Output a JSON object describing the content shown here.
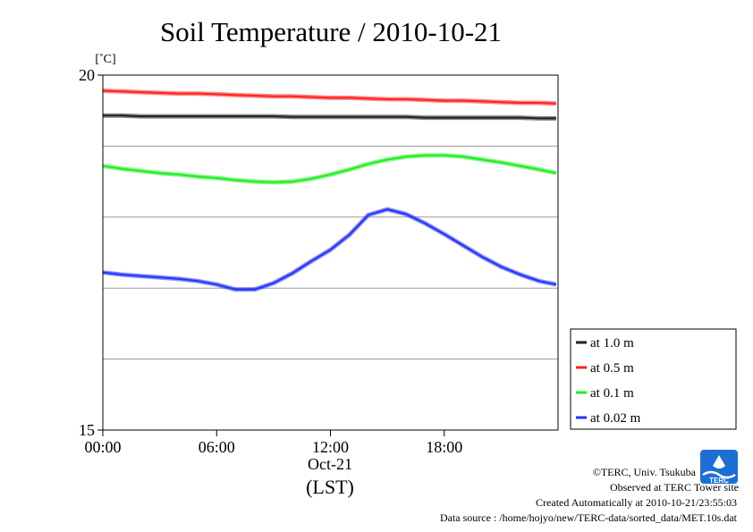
{
  "chart_data": {
    "type": "line",
    "title": "Soil Temperature / 2010-10-21",
    "unit_label": "[˚C]",
    "ylim": [
      15,
      20
    ],
    "y_ticks": [
      {
        "value": 20,
        "label": "20"
      },
      {
        "value": 15,
        "label": "15"
      }
    ],
    "y_gridlines": [
      16,
      17,
      18,
      19
    ],
    "xlim": [
      0,
      24
    ],
    "x_ticks": [
      {
        "value": 0,
        "label": "00:00"
      },
      {
        "value": 6,
        "label": "06:00"
      },
      {
        "value": 12,
        "label": "12:00"
      },
      {
        "value": 18,
        "label": "18:00"
      }
    ],
    "date_label": "Oct-21",
    "xlabel": "(LST)",
    "legend_position": "right",
    "x": [
      0,
      1,
      2,
      3,
      4,
      5,
      6,
      7,
      8,
      9,
      10,
      11,
      12,
      13,
      14,
      15,
      16,
      17,
      18,
      19,
      20,
      21,
      22,
      23,
      23.9
    ],
    "series": [
      {
        "name": "at 1.0 m",
        "color": "#222222",
        "values": [
          19.43,
          19.43,
          19.42,
          19.42,
          19.42,
          19.42,
          19.42,
          19.42,
          19.42,
          19.42,
          19.41,
          19.41,
          19.41,
          19.41,
          19.41,
          19.41,
          19.41,
          19.4,
          19.4,
          19.4,
          19.4,
          19.4,
          19.4,
          19.39,
          19.39
        ]
      },
      {
        "name": "at 0.5 m",
        "color": "#ff2222",
        "values": [
          19.78,
          19.77,
          19.76,
          19.75,
          19.74,
          19.74,
          19.73,
          19.72,
          19.71,
          19.7,
          19.7,
          19.69,
          19.68,
          19.68,
          19.67,
          19.66,
          19.66,
          19.65,
          19.64,
          19.64,
          19.63,
          19.62,
          19.61,
          19.61,
          19.6
        ]
      },
      {
        "name": "at 0.1 m",
        "color": "#22ee22",
        "values": [
          18.72,
          18.68,
          18.65,
          18.62,
          18.6,
          18.57,
          18.55,
          18.52,
          18.5,
          18.49,
          18.5,
          18.54,
          18.6,
          18.67,
          18.75,
          18.81,
          18.85,
          18.87,
          18.87,
          18.85,
          18.81,
          18.77,
          18.72,
          18.67,
          18.62
        ]
      },
      {
        "name": "at 0.02 m",
        "color": "#2233ff",
        "values": [
          17.22,
          17.19,
          17.17,
          17.15,
          17.13,
          17.1,
          17.05,
          16.98,
          16.98,
          17.07,
          17.21,
          17.38,
          17.54,
          17.75,
          18.03,
          18.11,
          18.04,
          17.91,
          17.76,
          17.6,
          17.44,
          17.3,
          17.19,
          17.1,
          17.05
        ]
      }
    ]
  },
  "footer": {
    "credit": "©TERC, Univ. Tsukuba",
    "site": "Observed at TERC Tower site",
    "created": "Created Automatically at 2010-10-21/23:55:03",
    "source": "Data source : /home/hojyo/new/TERC-data/sorted_data/MET.10s.dat",
    "logo_text": "TERC"
  }
}
